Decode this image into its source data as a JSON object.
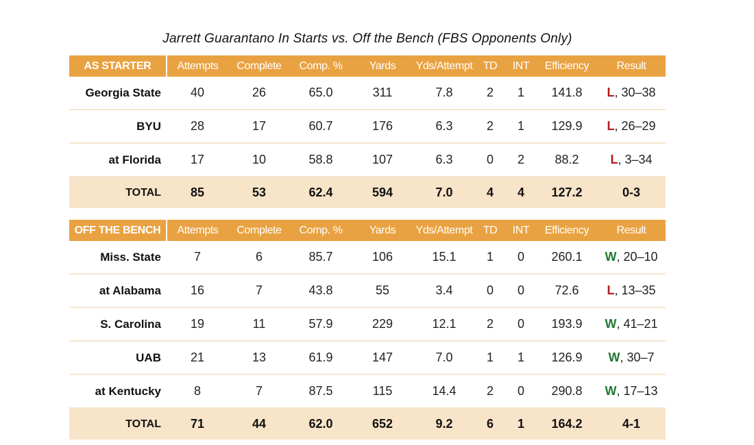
{
  "title": "Jarrett Guarantano In Starts vs. Off the Bench (FBS Opponents Only)",
  "colors": {
    "header_bg": "#e9a241",
    "total_bg": "#f8e4c8",
    "loss": "#b01c1c",
    "win": "#1f7a2e"
  },
  "chart_data": {
    "type": "table",
    "title": "Jarrett Guarantano In Starts vs. Off the Bench (FBS Opponents Only)",
    "columns": [
      "Attempts",
      "Complete",
      "Comp. %",
      "Yards",
      "Yds/Attempt",
      "TD",
      "INT",
      "Efficiency",
      "Result"
    ],
    "sections": [
      {
        "name": "AS STARTER",
        "rows": [
          {
            "team": "Georgia State",
            "attempts": "40",
            "complete": "26",
            "comp_pct": "65.0",
            "yards": "311",
            "yds_att": "7.8",
            "td": "2",
            "int": "1",
            "eff": "141.8",
            "result_letter": "L",
            "result_score": ", 30–38"
          },
          {
            "team": "BYU",
            "attempts": "28",
            "complete": "17",
            "comp_pct": "60.7",
            "yards": "176",
            "yds_att": "6.3",
            "td": "2",
            "int": "1",
            "eff": "129.9",
            "result_letter": "L",
            "result_score": ", 26–29"
          },
          {
            "team": "at Florida",
            "attempts": "17",
            "complete": "10",
            "comp_pct": "58.8",
            "yards": "107",
            "yds_att": "6.3",
            "td": "0",
            "int": "2",
            "eff": "88.2",
            "result_letter": "L",
            "result_score": ", 3–34"
          }
        ],
        "total": {
          "label": "TOTAL",
          "attempts": "85",
          "complete": "53",
          "comp_pct": "62.4",
          "yards": "594",
          "yds_att": "7.0",
          "td": "4",
          "int": "4",
          "eff": "127.2",
          "result": "0-3"
        }
      },
      {
        "name": "OFF THE BENCH",
        "rows": [
          {
            "team": "Miss. State",
            "attempts": "7",
            "complete": "6",
            "comp_pct": "85.7",
            "yards": "106",
            "yds_att": "15.1",
            "td": "1",
            "int": "0",
            "eff": "260.1",
            "result_letter": "W",
            "result_score": ", 20–10"
          },
          {
            "team": "at Alabama",
            "attempts": "16",
            "complete": "7",
            "comp_pct": "43.8",
            "yards": "55",
            "yds_att": "3.4",
            "td": "0",
            "int": "0",
            "eff": "72.6",
            "result_letter": "L",
            "result_score": ", 13–35"
          },
          {
            "team": "S. Carolina",
            "attempts": "19",
            "complete": "11",
            "comp_pct": "57.9",
            "yards": "229",
            "yds_att": "12.1",
            "td": "2",
            "int": "0",
            "eff": "193.9",
            "result_letter": "W",
            "result_score": ", 41–21"
          },
          {
            "team": "UAB",
            "attempts": "21",
            "complete": "13",
            "comp_pct": "61.9",
            "yards": "147",
            "yds_att": "7.0",
            "td": "1",
            "int": "1",
            "eff": "126.9",
            "result_letter": "W",
            "result_score": ", 30–7"
          },
          {
            "team": "at Kentucky",
            "attempts": "8",
            "complete": "7",
            "comp_pct": "87.5",
            "yards": "115",
            "yds_att": "14.4",
            "td": "2",
            "int": "0",
            "eff": "290.8",
            "result_letter": "W",
            "result_score": ", 17–13"
          }
        ],
        "total": {
          "label": "TOTAL",
          "attempts": "71",
          "complete": "44",
          "comp_pct": "62.0",
          "yards": "652",
          "yds_att": "9.2",
          "td": "6",
          "int": "1",
          "eff": "164.2",
          "result": "4-1"
        }
      }
    ]
  }
}
